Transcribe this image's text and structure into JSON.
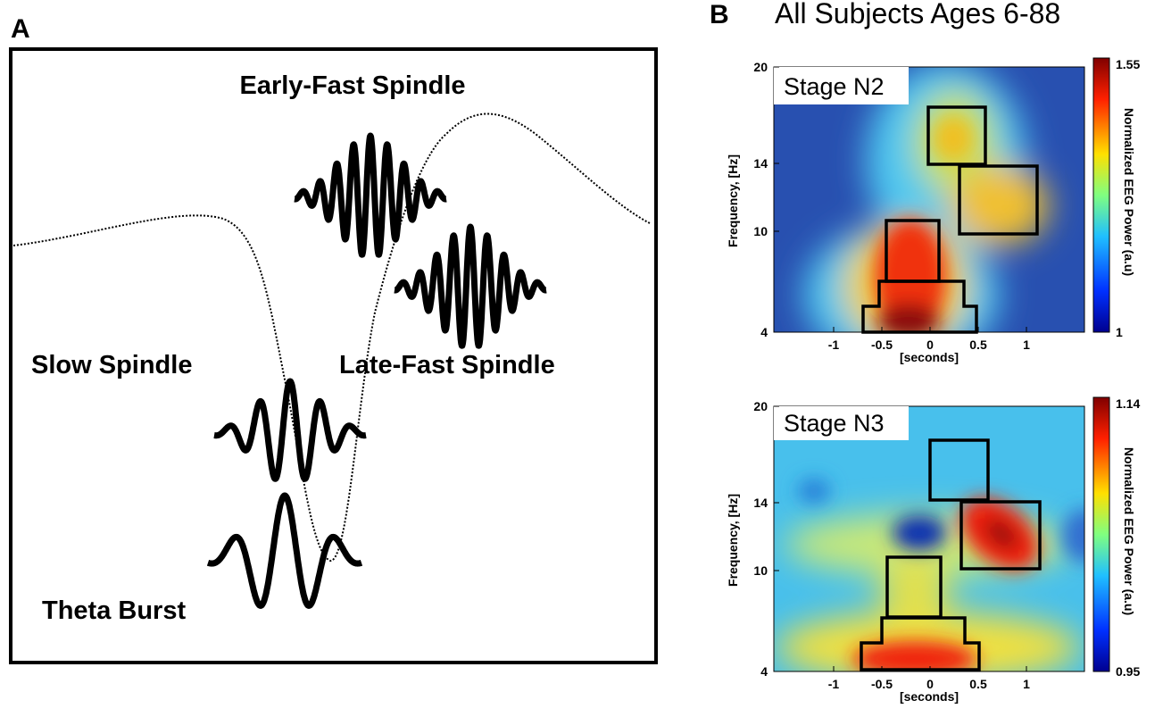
{
  "panel_a": {
    "label": "A",
    "labels": [
      "Early-Fast Spindle",
      "Slow Spindle",
      "Late-Fast Spindle",
      "Theta Burst"
    ]
  },
  "panel_b": {
    "label": "B",
    "title": "All Subjects Ages 6-88",
    "plots": [
      {
        "stage": "Stage N2",
        "y_label": "Frequency, [Hz]",
        "x_label": "[seconds]",
        "yticks": [
          "20",
          "14",
          "10",
          "4"
        ],
        "xticks": [
          "-1",
          "-0.5",
          "0",
          "0.5",
          "1"
        ],
        "colorbar_label": "Normalized EEG Power (a.u)",
        "colorbar_max": "1.55",
        "colorbar_min": "1"
      },
      {
        "stage": "Stage N3",
        "y_label": "Frequency, [Hz]",
        "x_label": "[seconds]",
        "yticks": [
          "20",
          "14",
          "10",
          "4"
        ],
        "xticks": [
          "-1",
          "-0.5",
          "0",
          "0.5",
          "1"
        ],
        "colorbar_label": "Normalized EEG Power (a.u)",
        "colorbar_max": "1.14",
        "colorbar_min": "0.95"
      }
    ]
  }
}
